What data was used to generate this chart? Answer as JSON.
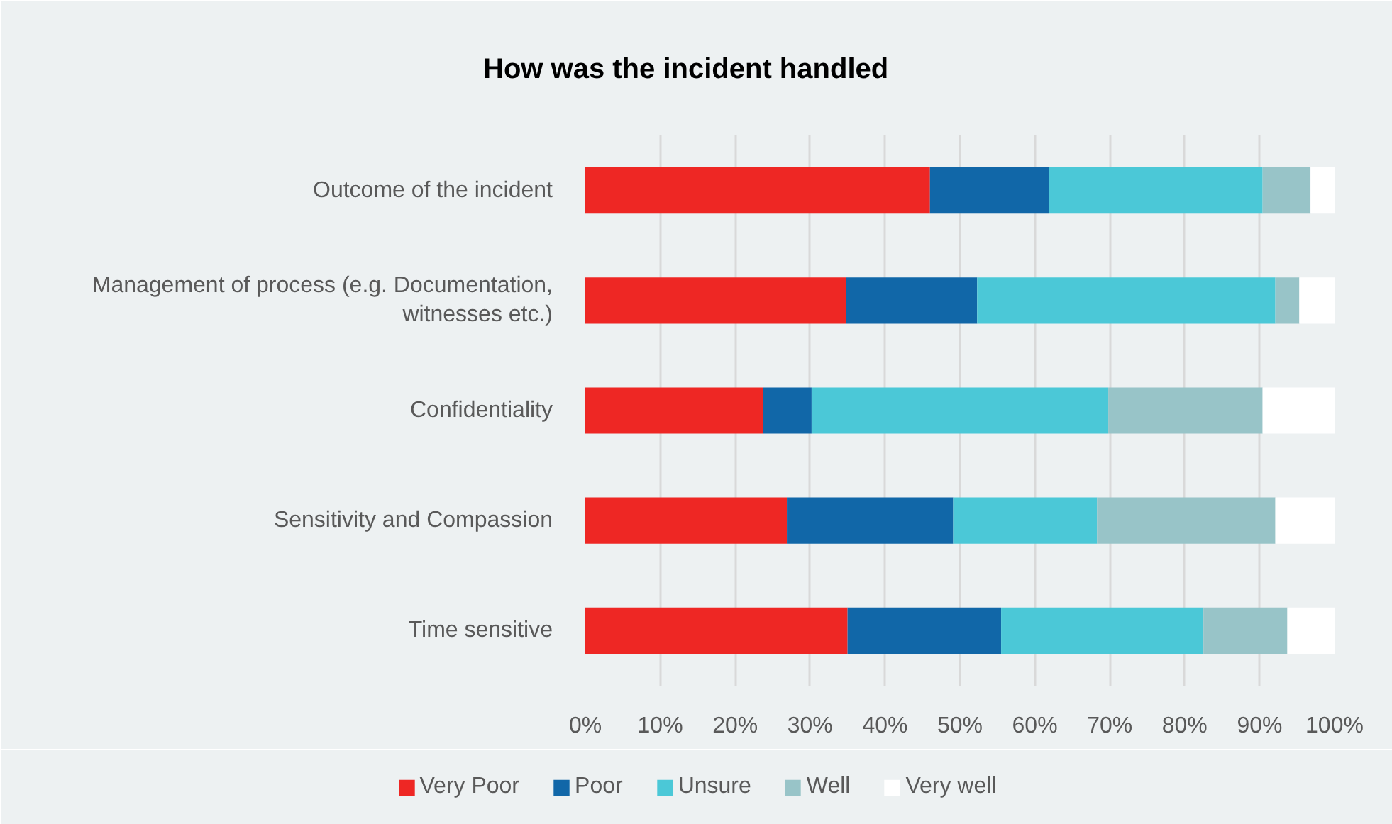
{
  "chart_data": {
    "type": "bar",
    "orientation": "horizontal",
    "stacked": true,
    "title": "How was the incident handled",
    "categories": [
      "Outcome of the incident",
      "Management of process (e.g. Documentation, witnesses etc.)",
      "Confidentiality",
      "Sensitivity and Compassion",
      "Time sensitive"
    ],
    "series": [
      {
        "name": "Very Poor",
        "color": "#ee2724",
        "values": [
          46.0,
          34.8,
          23.7,
          26.9,
          35.0
        ]
      },
      {
        "name": "Poor",
        "color": "#1167a8",
        "values": [
          15.9,
          17.5,
          6.5,
          22.2,
          20.5
        ]
      },
      {
        "name": "Unsure",
        "color": "#4bc8d7",
        "values": [
          28.5,
          39.8,
          39.6,
          19.2,
          27.0
        ]
      },
      {
        "name": "Well",
        "color": "#98c4c8",
        "values": [
          6.4,
          3.2,
          20.6,
          23.8,
          11.2
        ]
      },
      {
        "name": "Very well",
        "color": "#ffffff",
        "values": [
          3.2,
          4.7,
          9.6,
          7.9,
          6.3
        ]
      }
    ],
    "xlim": [
      0,
      100
    ],
    "xticks": [
      {
        "value": 0,
        "label": "0%"
      },
      {
        "value": 10,
        "label": "10%"
      },
      {
        "value": 20,
        "label": "20%"
      },
      {
        "value": 30,
        "label": "30%"
      },
      {
        "value": 40,
        "label": "40%"
      },
      {
        "value": 50,
        "label": "50%"
      },
      {
        "value": 60,
        "label": "60%"
      },
      {
        "value": 70,
        "label": "70%"
      },
      {
        "value": 80,
        "label": "80%"
      },
      {
        "value": 90,
        "label": "90%"
      },
      {
        "value": 100,
        "label": "100%"
      }
    ],
    "grid": "x",
    "legend": "bottom"
  }
}
